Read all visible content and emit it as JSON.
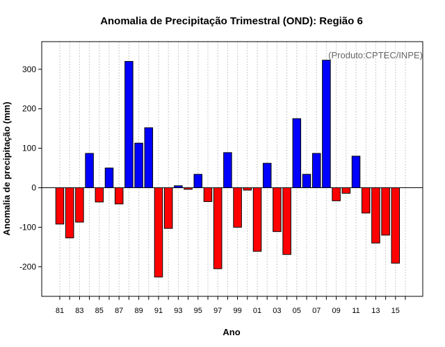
{
  "chart_data": {
    "type": "bar",
    "title": "Anomalia de Precipitação Trimestral (OND): Região 6",
    "xlabel": "Ano",
    "ylabel": "Anomalia de precipitação (mm)",
    "source_note": "(Produto:CPTEC/INPE)",
    "ylim": [
      -275,
      370
    ],
    "y_ticks": [
      -200,
      -100,
      0,
      100,
      200,
      300
    ],
    "x_tick_labels": [
      "81",
      "83",
      "85",
      "87",
      "89",
      "91",
      "93",
      "95",
      "97",
      "99",
      "01",
      "03",
      "05",
      "07",
      "09",
      "11",
      "13",
      "15"
    ],
    "categories": [
      "1981",
      "1982",
      "1983",
      "1984",
      "1985",
      "1986",
      "1987",
      "1988",
      "1989",
      "1990",
      "1991",
      "1992",
      "1993",
      "1994",
      "1995",
      "1996",
      "1997",
      "1998",
      "1999",
      "2000",
      "2001",
      "2002",
      "2003",
      "2004",
      "2005",
      "2006",
      "2007",
      "2008",
      "2009",
      "2010",
      "2011",
      "2012",
      "2013",
      "2014",
      "2015"
    ],
    "values": [
      -92,
      -127,
      -87,
      87,
      -36,
      50,
      -41,
      320,
      113,
      152,
      -226,
      -103,
      5,
      -4,
      34,
      -35,
      -205,
      89,
      -100,
      -6,
      -161,
      62,
      -111,
      -169,
      175,
      34,
      87,
      323,
      -33,
      -14,
      80,
      -64,
      -140,
      -120,
      -191
    ],
    "colors": {
      "positive": "#0000ff",
      "negative": "#ff0000",
      "zero_line": "#000000"
    }
  }
}
